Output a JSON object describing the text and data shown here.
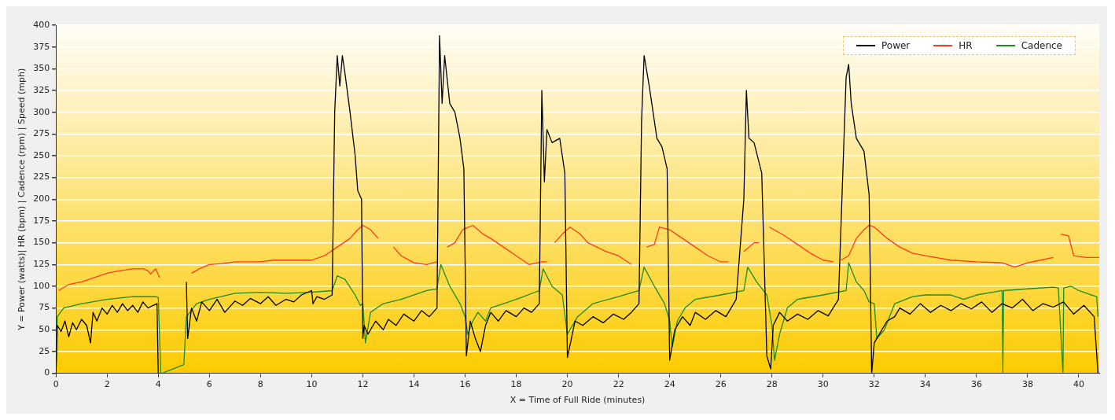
{
  "chart_data": {
    "type": "line",
    "xlabel": "X = Time of Full Ride (minutes)",
    "ylabel": "Y = Power (watts)| HR (bpm) | Cadence (rpm) | Speed (mph)",
    "xlim": [
      0,
      40.8
    ],
    "xticks": [
      0,
      2,
      4,
      6,
      8,
      10,
      12,
      14,
      16,
      18,
      20,
      22,
      24,
      26,
      28,
      30,
      32,
      34,
      36,
      38,
      40
    ],
    "ylim": [
      0,
      400
    ],
    "yticks": [
      0,
      25,
      50,
      75,
      100,
      125,
      150,
      175,
      200,
      225,
      250,
      275,
      300,
      325,
      350,
      375,
      400
    ],
    "grid": "y",
    "legend": "top right",
    "marker": "none",
    "line_style": "solid",
    "series": [
      {
        "name": "Power",
        "color": "#000000",
        "x": [
          0,
          0.05,
          0.2,
          0.35,
          0.5,
          0.65,
          0.8,
          1,
          1.2,
          1.35,
          1.45,
          1.6,
          1.8,
          2,
          2.2,
          2.4,
          2.6,
          2.8,
          3,
          3.2,
          3.4,
          3.6,
          3.8,
          3.95,
          4.0,
          4.15,
          4.2,
          5.05,
          5.1,
          5.15,
          5.3,
          5.5,
          5.7,
          6,
          6.3,
          6.6,
          7,
          7.3,
          7.6,
          8,
          8.3,
          8.6,
          9,
          9.3,
          9.6,
          10,
          10.05,
          10.2,
          10.5,
          10.8,
          10.9,
          11.0,
          11.1,
          11.2,
          11.3,
          11.5,
          11.7,
          11.8,
          11.95,
          12.0,
          12.05,
          12.2,
          12.5,
          12.8,
          13,
          13.3,
          13.6,
          14,
          14.3,
          14.6,
          14.9,
          15.0,
          15.1,
          15.2,
          15.4,
          15.6,
          15.8,
          15.95,
          16.05,
          16.2,
          16.4,
          16.6,
          16.8,
          17,
          17.3,
          17.6,
          18,
          18.3,
          18.6,
          18.9,
          19.0,
          19.1,
          19.2,
          19.4,
          19.7,
          19.9,
          20.0,
          20.3,
          20.6,
          21,
          21.4,
          21.8,
          22.2,
          22.5,
          22.8,
          22.9,
          23.0,
          23.2,
          23.5,
          23.7,
          23.9,
          24.0,
          24.2,
          24.5,
          24.8,
          25,
          25.4,
          25.8,
          26.2,
          26.6,
          26.9,
          27.0,
          27.1,
          27.3,
          27.6,
          27.8,
          27.95,
          28.05,
          28.3,
          28.6,
          29,
          29.4,
          29.8,
          30.2,
          30.6,
          30.9,
          31.0,
          31.1,
          31.3,
          31.6,
          31.8,
          31.9,
          32.0,
          32.2,
          32.5,
          32.8,
          33,
          33.4,
          33.8,
          34.2,
          34.6,
          35,
          35.4,
          35.8,
          36.2,
          36.6,
          37,
          37.4,
          37.8,
          38.2,
          38.6,
          39,
          39.4,
          39.8,
          40.2,
          40.6,
          40.75
        ],
        "values": [
          0,
          55,
          48,
          60,
          42,
          58,
          50,
          62,
          55,
          35,
          70,
          60,
          75,
          68,
          78,
          70,
          80,
          72,
          78,
          70,
          82,
          75,
          78,
          80,
          0,
          0,
          null,
          null,
          105,
          40,
          75,
          60,
          82,
          72,
          85,
          70,
          83,
          78,
          86,
          80,
          88,
          78,
          85,
          82,
          90,
          95,
          80,
          88,
          85,
          90,
          300,
          365,
          330,
          365,
          345,
          300,
          250,
          210,
          200,
          40,
          55,
          45,
          60,
          50,
          62,
          55,
          68,
          60,
          72,
          65,
          75,
          388,
          310,
          365,
          310,
          300,
          270,
          235,
          20,
          60,
          40,
          25,
          55,
          70,
          60,
          72,
          65,
          75,
          70,
          80,
          325,
          220,
          280,
          265,
          270,
          230,
          18,
          60,
          55,
          65,
          58,
          68,
          62,
          70,
          80,
          290,
          365,
          330,
          270,
          260,
          235,
          15,
          50,
          65,
          55,
          70,
          62,
          72,
          65,
          85,
          200,
          325,
          270,
          265,
          230,
          20,
          5,
          55,
          70,
          60,
          68,
          62,
          72,
          66,
          85,
          340,
          355,
          310,
          270,
          255,
          205,
          0,
          35,
          45,
          60,
          65,
          75,
          68,
          80,
          70,
          78,
          72,
          80,
          74,
          82,
          70,
          80,
          75,
          85,
          72,
          80,
          76,
          82,
          68,
          78,
          65,
          0
        ]
      },
      {
        "name": "HR",
        "color": "#ff3b1f",
        "x": [
          0.1,
          0.5,
          1,
          1.5,
          2,
          2.5,
          3,
          3.4,
          3.6,
          3.7,
          3.9,
          4.05,
          4.2,
          5.3,
          5.6,
          6,
          6.5,
          7,
          7.5,
          8,
          8.5,
          9,
          9.5,
          10,
          10.5,
          11,
          11.5,
          11.8,
          12,
          12.3,
          12.6,
          12.7,
          13.2,
          13.5,
          14,
          14.5,
          14.9,
          15.1,
          15.3,
          15.6,
          15.9,
          16.3,
          16.7,
          17,
          17.5,
          18,
          18.5,
          19,
          19.2,
          19.3,
          19.5,
          19.8,
          20.1,
          20.5,
          20.8,
          21.5,
          22,
          22.5,
          22.6,
          23.1,
          23.4,
          23.6,
          24,
          24.5,
          25,
          25.5,
          26,
          26.3,
          26.4,
          26.9,
          27.3,
          27.5,
          27.7,
          27.9,
          28.5,
          29,
          29.5,
          30,
          30.4,
          30.6,
          30.7,
          31,
          31.3,
          31.6,
          31.8,
          32,
          32.5,
          33,
          33.5,
          34,
          35,
          36,
          37,
          37.5,
          38,
          38.5,
          39,
          39.1,
          39.3,
          39.6,
          39.8,
          40.3,
          40.8
        ],
        "values": [
          95,
          102,
          105,
          110,
          115,
          118,
          120,
          120,
          118,
          114,
          120,
          110,
          null,
          115,
          120,
          125,
          126,
          128,
          128,
          128,
          130,
          130,
          130,
          130,
          135,
          145,
          155,
          165,
          170,
          165,
          155,
          null,
          145,
          135,
          127,
          125,
          128,
          null,
          145,
          150,
          165,
          170,
          160,
          155,
          145,
          135,
          125,
          128,
          128,
          null,
          150,
          160,
          168,
          160,
          150,
          140,
          135,
          125,
          null,
          145,
          148,
          168,
          165,
          155,
          145,
          135,
          128,
          128,
          null,
          140,
          150,
          150,
          null,
          168,
          158,
          148,
          138,
          130,
          128,
          null,
          130,
          135,
          155,
          165,
          170,
          168,
          155,
          145,
          138,
          135,
          130,
          128,
          127,
          122,
          127,
          130,
          133,
          null,
          160,
          158,
          135,
          133,
          133
        ]
      },
      {
        "name": "Cadence",
        "color": "#1e8c1e",
        "x": [
          0,
          0.05,
          0.3,
          1,
          2,
          3,
          3.9,
          4.0,
          4.1,
          4.15,
          5.0,
          5.1,
          5.5,
          6,
          7,
          8,
          9,
          10,
          10.8,
          11,
          11.3,
          11.7,
          11.9,
          12.0,
          12.1,
          12.3,
          12.8,
          13.5,
          14.5,
          14.9,
          15.05,
          15.4,
          15.8,
          16.0,
          16.1,
          16.3,
          16.5,
          16.8,
          17,
          18,
          18.9,
          19.05,
          19.4,
          19.8,
          20.0,
          20.4,
          21,
          22,
          22.8,
          23.0,
          23.4,
          23.8,
          24.0,
          24.1,
          24.3,
          24.6,
          25,
          26,
          26.9,
          27.05,
          27.4,
          27.8,
          28.0,
          28.1,
          28.3,
          28.6,
          29,
          30,
          30.9,
          31.0,
          31.3,
          31.6,
          31.8,
          32.0,
          32.1,
          32.4,
          32.8,
          33.5,
          34,
          35,
          35.5,
          36,
          37,
          37.03,
          37.06,
          38,
          39,
          39.2,
          39.38,
          39.41,
          39.7,
          40,
          40.5,
          40.7,
          40.75
        ],
        "values": [
          0,
          65,
          75,
          80,
          85,
          88,
          88,
          87,
          0,
          0,
          10,
          65,
          80,
          85,
          92,
          93,
          92,
          93,
          95,
          112,
          108,
          90,
          78,
          80,
          35,
          70,
          80,
          85,
          95,
          97,
          125,
          100,
          80,
          65,
          45,
          60,
          70,
          60,
          75,
          85,
          95,
          120,
          100,
          90,
          45,
          65,
          80,
          88,
          95,
          122,
          100,
          80,
          60,
          30,
          60,
          75,
          85,
          90,
          95,
          122,
          105,
          90,
          55,
          15,
          45,
          75,
          85,
          90,
          95,
          127,
          105,
          95,
          82,
          80,
          40,
          50,
          80,
          88,
          90,
          90,
          85,
          90,
          95,
          0,
          95,
          97,
          99,
          98,
          0,
          98,
          100,
          95,
          90,
          88,
          65
        ]
      }
    ]
  }
}
